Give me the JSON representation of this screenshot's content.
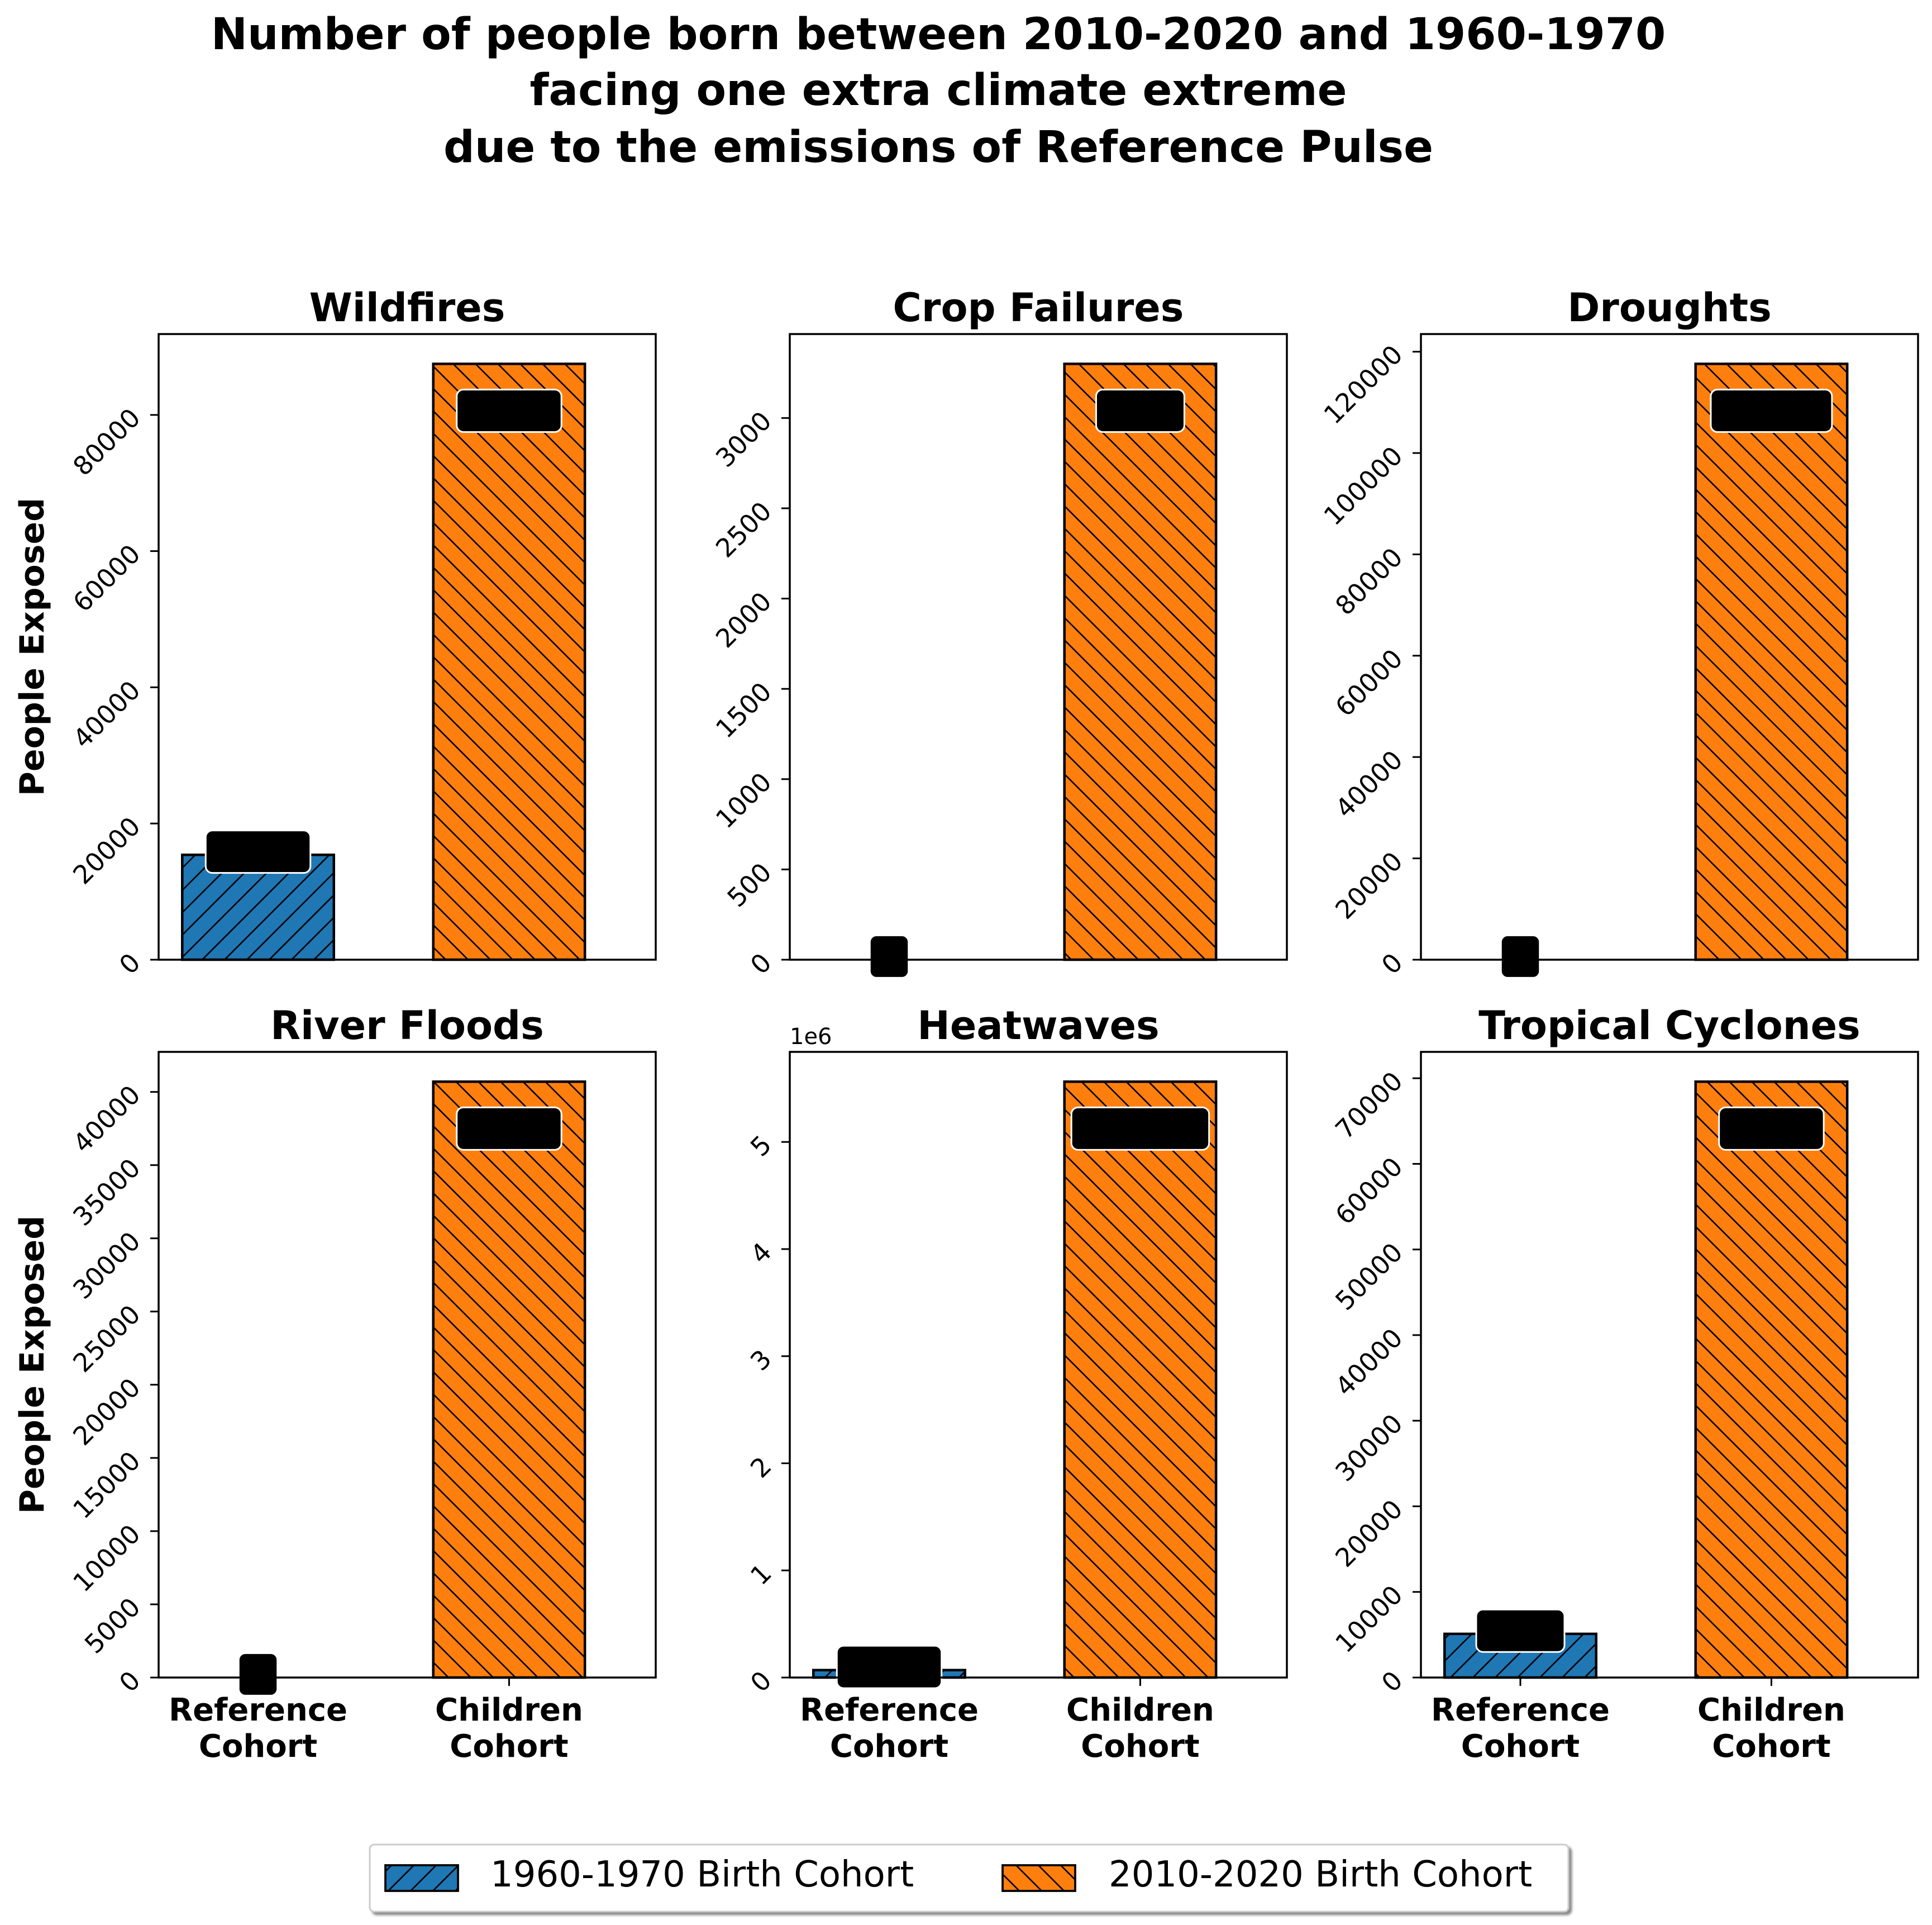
{
  "title_lines": [
    "Number of people born between 2010-2020 and 1960-1970",
    "facing one extra climate extreme",
    "due to the emissions of Reference Pulse"
  ],
  "y_axis_label": "People Exposed",
  "categories": [
    "Reference\nCohort",
    "Children\nCohort"
  ],
  "colors": {
    "reference": "#1f77b4",
    "children": "#ff7f0e",
    "label_box": "#000000"
  },
  "legend": [
    {
      "label": "1960-1970 Birth Cohort",
      "color": "#1f77b4",
      "hatch": "/"
    },
    {
      "label": "2010-2020 Birth Cohort",
      "color": "#ff7f0e",
      "hatch": "\\"
    }
  ],
  "chart_data": [
    {
      "type": "bar",
      "title": "Wildfires",
      "categories": [
        "Reference Cohort",
        "Children Cohort"
      ],
      "values": [
        15400,
        87500
      ],
      "labels": [
        "15400",
        "87500"
      ],
      "ylim": [
        0,
        91875
      ],
      "ticks": [
        0,
        20000,
        40000,
        60000,
        80000
      ],
      "tick_labels": [
        "0",
        "20000",
        "40000",
        "60000",
        "80000"
      ],
      "ylabel": "People Exposed"
    },
    {
      "type": "bar",
      "title": "Crop Failures",
      "categories": [
        "Reference Cohort",
        "Children Cohort"
      ],
      "values": [
        0,
        3300
      ],
      "labels": [
        "0",
        "3300"
      ],
      "ylim": [
        0,
        3465
      ],
      "ticks": [
        0,
        500,
        1000,
        1500,
        2000,
        2500,
        3000
      ],
      "tick_labels": [
        "0",
        "500",
        "1000",
        "1500",
        "2000",
        "2500",
        "3000"
      ],
      "ylabel": ""
    },
    {
      "type": "bar",
      "title": "Droughts",
      "categories": [
        "Reference Cohort",
        "Children Cohort"
      ],
      "values": [
        0,
        117600
      ],
      "labels": [
        "0",
        "117600"
      ],
      "ylim": [
        0,
        123480
      ],
      "ticks": [
        0,
        20000,
        40000,
        60000,
        80000,
        100000,
        120000
      ],
      "tick_labels": [
        "0",
        "20000",
        "40000",
        "60000",
        "80000",
        "100000",
        "120000"
      ],
      "ylabel": ""
    },
    {
      "type": "bar",
      "title": "River Floods",
      "categories": [
        "Reference Cohort",
        "Children Cohort"
      ],
      "values": [
        0,
        40700
      ],
      "labels": [
        "0",
        "40700"
      ],
      "ylim": [
        0,
        42735
      ],
      "ticks": [
        0,
        5000,
        10000,
        15000,
        20000,
        25000,
        30000,
        35000,
        40000
      ],
      "tick_labels": [
        "0",
        "5000",
        "10000",
        "15000",
        "20000",
        "25000",
        "30000",
        "35000",
        "40000"
      ],
      "ylabel": "People Exposed"
    },
    {
      "type": "bar",
      "title": "Heatwaves",
      "categories": [
        "Reference Cohort",
        "Children Cohort"
      ],
      "values": [
        69400,
        5562700
      ],
      "labels": [
        "69400",
        "5562700"
      ],
      "ylim": [
        0,
        5840835
      ],
      "ticks": [
        0,
        1000000,
        2000000,
        3000000,
        4000000,
        5000000
      ],
      "tick_labels": [
        "0",
        "1",
        "2",
        "3",
        "4",
        "5"
      ],
      "offset_text": "1e6",
      "ylabel": ""
    },
    {
      "type": "bar",
      "title": "Tropical Cyclones",
      "categories": [
        "Reference Cohort",
        "Children Cohort"
      ],
      "values": [
        5100,
        69600
      ],
      "labels": [
        "5100",
        "69600"
      ],
      "ylim": [
        0,
        73080
      ],
      "ticks": [
        0,
        10000,
        20000,
        30000,
        40000,
        50000,
        60000,
        70000
      ],
      "tick_labels": [
        "0",
        "10000",
        "20000",
        "30000",
        "40000",
        "50000",
        "60000",
        "70000"
      ],
      "ylabel": ""
    }
  ]
}
